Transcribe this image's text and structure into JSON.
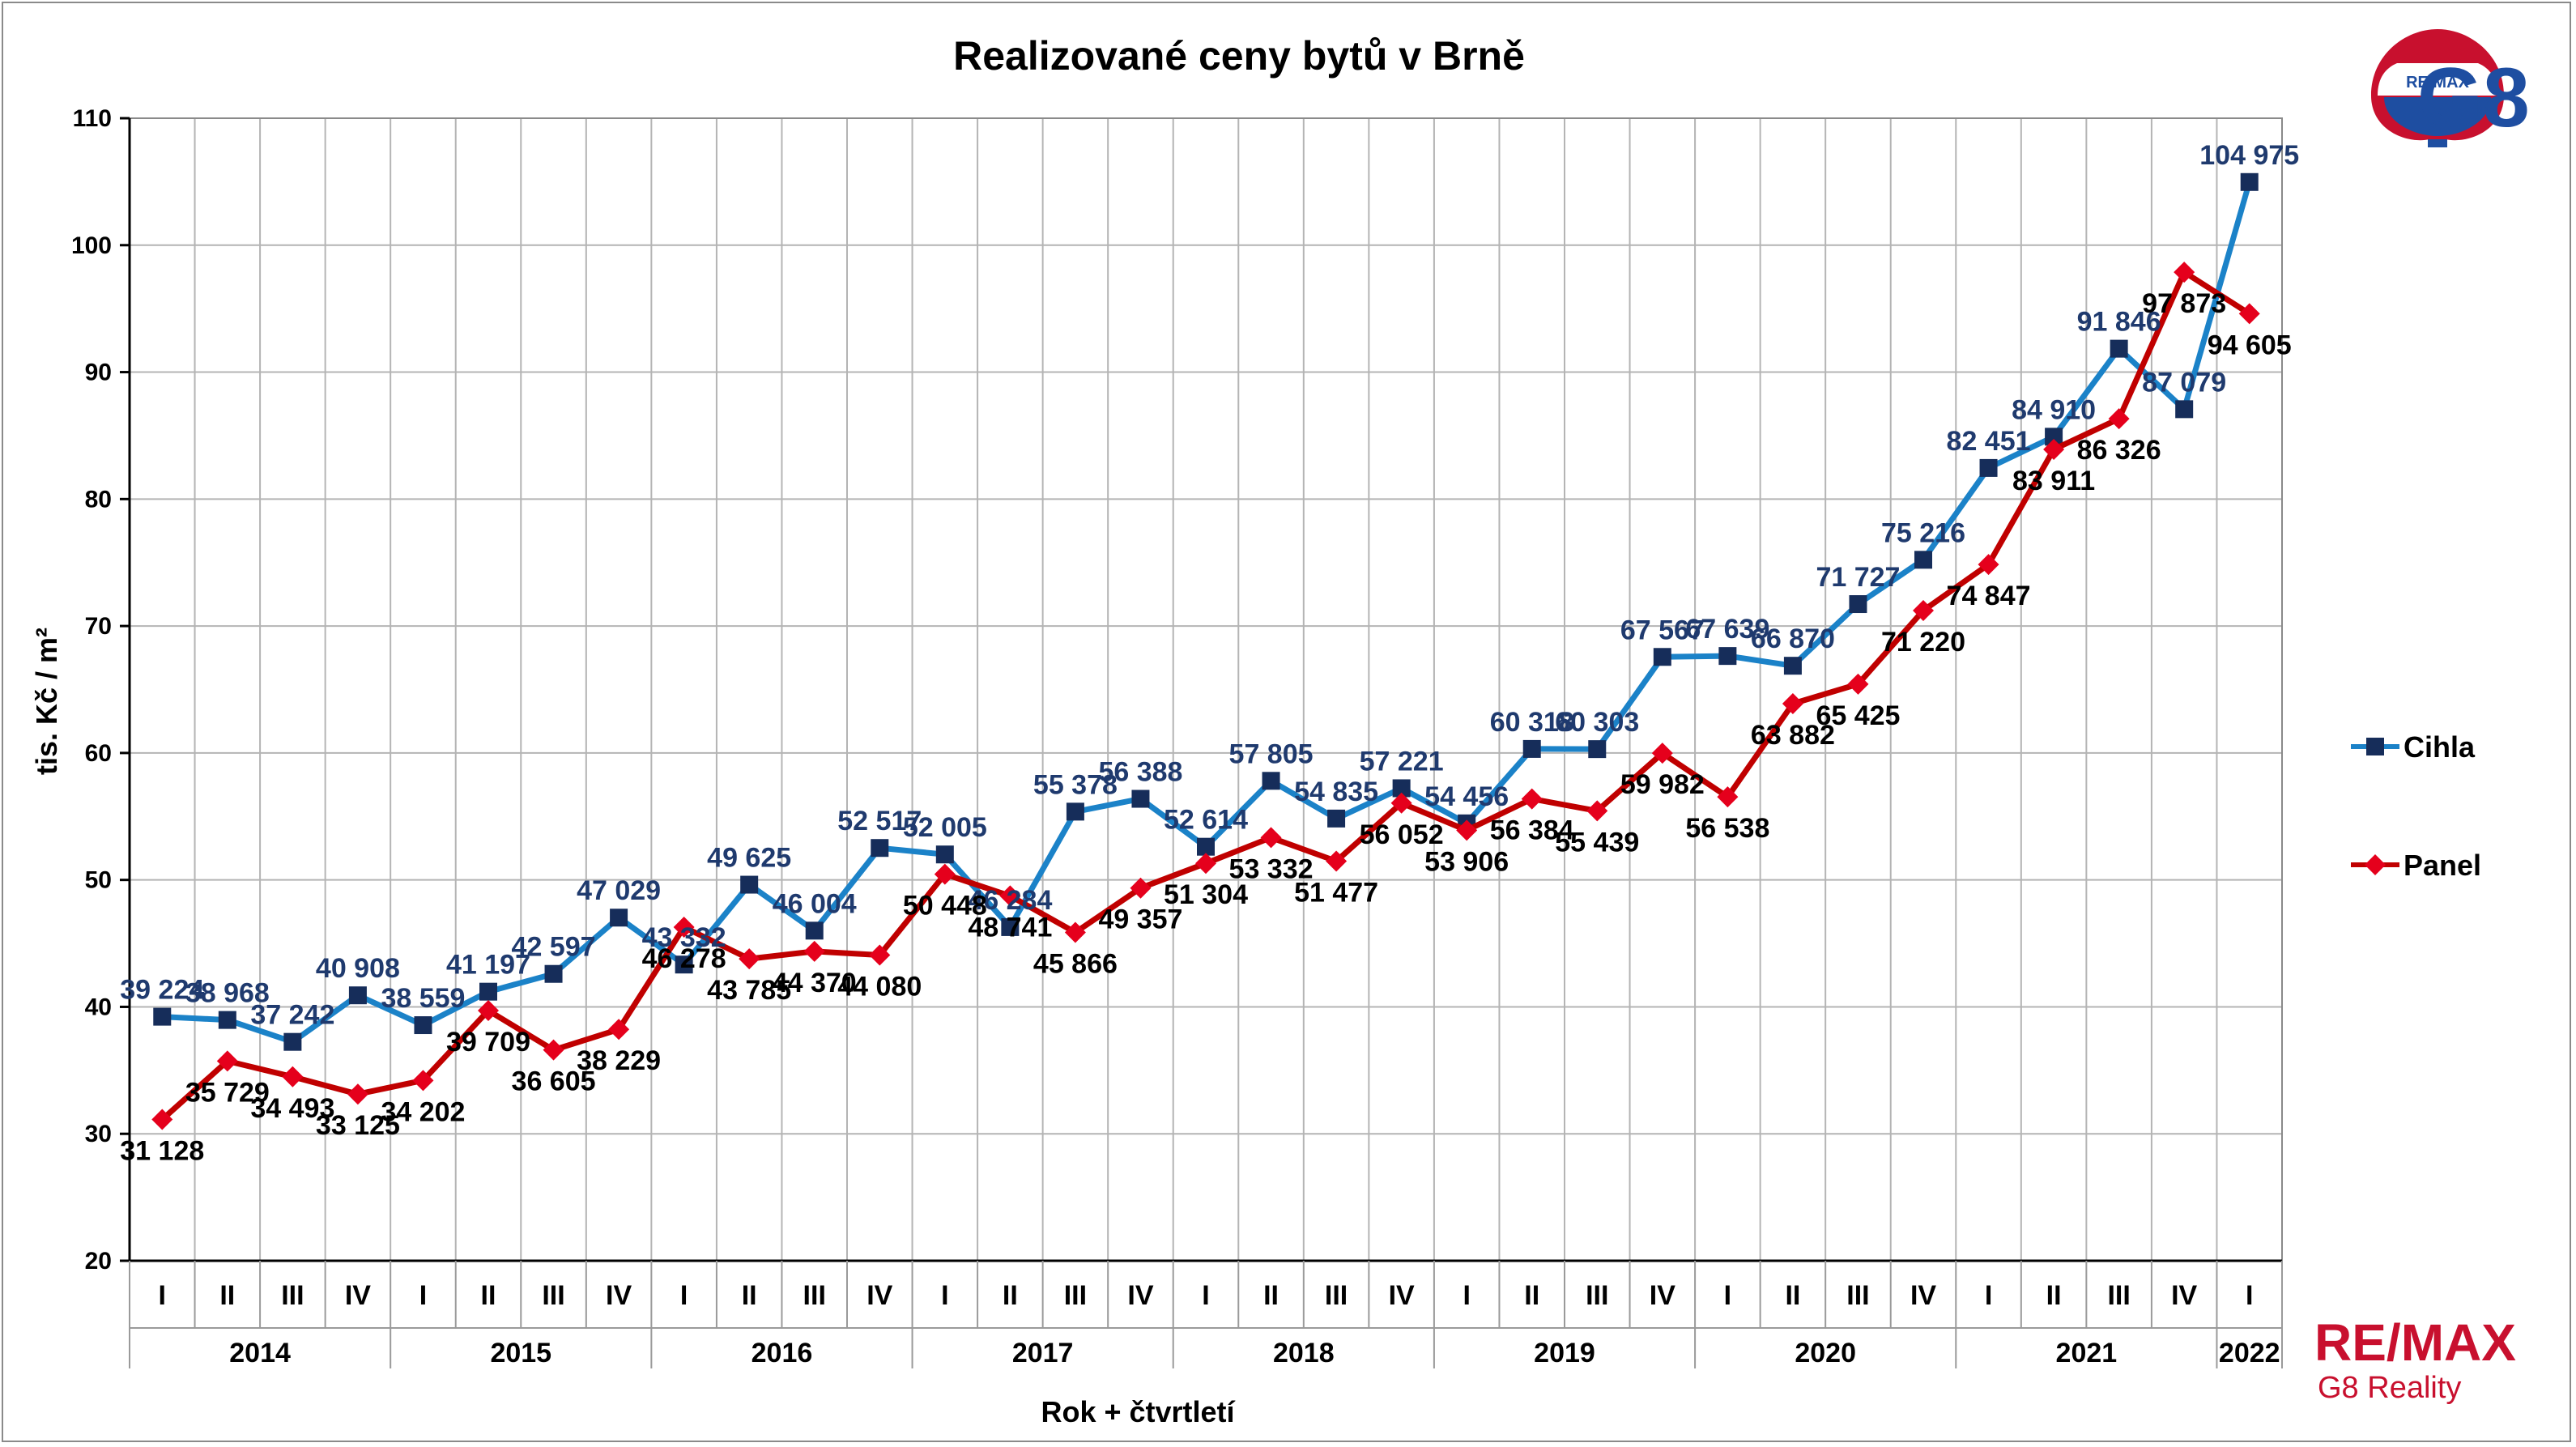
{
  "chart_data": {
    "type": "line",
    "title": "Realizované ceny bytů v Brně",
    "ylabel": "tis. Kč / m²",
    "xlabel": "Rok + čtvrtletí",
    "ylim": [
      20,
      110
    ],
    "yticks": [
      20,
      30,
      40,
      50,
      60,
      70,
      80,
      90,
      100,
      110
    ],
    "grid": true,
    "legend_position": "right",
    "quarters": [
      "I",
      "II",
      "III",
      "IV",
      "I",
      "II",
      "III",
      "IV",
      "I",
      "II",
      "III",
      "IV",
      "I",
      "II",
      "III",
      "IV",
      "I",
      "II",
      "III",
      "IV",
      "I",
      "II",
      "III",
      "IV",
      "I",
      "II",
      "III",
      "IV",
      "I",
      "II",
      "III",
      "IV",
      "I"
    ],
    "years": [
      {
        "label": "2014",
        "quarters": 4
      },
      {
        "label": "2015",
        "quarters": 4
      },
      {
        "label": "2016",
        "quarters": 4
      },
      {
        "label": "2017",
        "quarters": 4
      },
      {
        "label": "2018",
        "quarters": 4
      },
      {
        "label": "2019",
        "quarters": 4
      },
      {
        "label": "2020",
        "quarters": 4
      },
      {
        "label": "2021",
        "quarters": 4
      },
      {
        "label": "2022",
        "quarters": 1
      }
    ],
    "series": [
      {
        "name": "Cihla",
        "color": "#1b82c8",
        "marker_color": "#162d5a",
        "marker": "square",
        "values": [
          39.224,
          38.968,
          37.242,
          40.908,
          38.559,
          41.197,
          42.597,
          47.029,
          43.332,
          49.625,
          46.004,
          52.517,
          52.005,
          46.284,
          55.378,
          56.388,
          52.614,
          57.805,
          54.835,
          57.221,
          54.456,
          60.318,
          60.303,
          67.567,
          67.639,
          66.87,
          71.727,
          75.216,
          82.451,
          84.91,
          91.846,
          87.079,
          104.975
        ],
        "labels": [
          "39 224",
          "38 968",
          "37 242",
          "40 908",
          "38 559",
          "41 197",
          "42 597",
          "47 029",
          "43 332",
          "49 625",
          "46 004",
          "52 517",
          "52 005",
          "46 284",
          "55 378",
          "56 388",
          "52 614",
          "57 805",
          "54 835",
          "57 221",
          "54 456",
          "60 318",
          "60 303",
          "67 567",
          "67 639",
          "66 870",
          "71 727",
          "75 216",
          "82 451",
          "84 910",
          "91 846",
          "87 079",
          "104 975"
        ]
      },
      {
        "name": "Panel",
        "color": "#c00000",
        "marker_color": "#e5001c",
        "marker": "diamond",
        "values": [
          31.128,
          35.729,
          34.493,
          33.125,
          34.202,
          39.709,
          36.605,
          38.229,
          46.278,
          43.785,
          44.37,
          44.08,
          50.448,
          48.741,
          45.866,
          49.357,
          51.304,
          53.332,
          51.477,
          56.052,
          53.906,
          56.384,
          55.439,
          59.982,
          56.538,
          63.882,
          65.425,
          71.22,
          74.847,
          83.911,
          86.326,
          97.873,
          94.605
        ],
        "labels": [
          "31 128",
          "35 729",
          "34 493",
          "33 125",
          "34 202",
          "39 709",
          "36 605",
          "38 229",
          "46 278",
          "43 785",
          "44 370",
          "44 080",
          "50 448",
          "48 741",
          "45 866",
          "49 357",
          "51 304",
          "53 332",
          "51 477",
          "56 052",
          "53 906",
          "56 384",
          "55 439",
          "59 982",
          "56 538",
          "63 882",
          "65 425",
          "71 220",
          "74 847",
          "83 911",
          "86 326",
          "97 873",
          "94 605"
        ]
      }
    ]
  },
  "logo": {
    "balloon_text": "RE/MAX",
    "brand_text": "G8"
  },
  "brand": {
    "re": "RE",
    "slash": "/",
    "max": "MAX",
    "sub": "G8 Reality"
  }
}
